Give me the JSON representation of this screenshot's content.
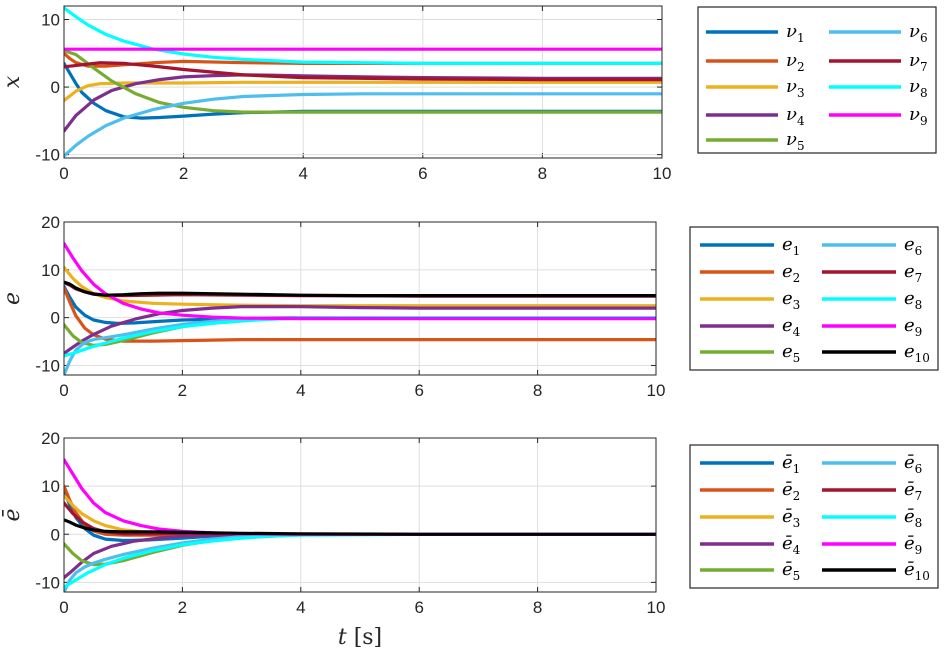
{
  "chart_data": [
    {
      "type": "line",
      "ylabel": "x",
      "xlim": [
        0,
        10
      ],
      "ylim": [
        -10.5,
        12
      ],
      "xticks": [
        "0",
        "2",
        "4",
        "6",
        "8",
        "10"
      ],
      "yticks": [
        "-10",
        "0",
        "10"
      ],
      "grid": true,
      "legend": {
        "placement": "right",
        "columns": 2
      },
      "series": [
        {
          "name": "ν1",
          "sub": "1",
          "base": "ν",
          "color": "#0072BD",
          "x": [
            0,
            0.1,
            0.2,
            0.3,
            0.5,
            0.7,
            1.0,
            1.3,
            1.6,
            2,
            2.5,
            3,
            4,
            5,
            6,
            8,
            10
          ],
          "y": [
            3.5,
            2.0,
            0.5,
            -0.8,
            -2.4,
            -3.5,
            -4.4,
            -4.6,
            -4.5,
            -4.3,
            -4.0,
            -3.8,
            -3.6,
            -3.6,
            -3.6,
            -3.6,
            -3.6
          ]
        },
        {
          "name": "ν2",
          "sub": "2",
          "base": "ν",
          "color": "#D95319",
          "x": [
            0,
            0.1,
            0.2,
            0.4,
            0.7,
            1.0,
            1.5,
            2,
            3,
            4,
            6,
            8,
            10
          ],
          "y": [
            5.0,
            4.2,
            3.6,
            3.1,
            3.1,
            3.3,
            3.6,
            3.8,
            3.6,
            3.5,
            3.5,
            3.5,
            3.5
          ]
        },
        {
          "name": "ν3",
          "sub": "3",
          "base": "ν",
          "color": "#EDB120",
          "x": [
            0,
            0.2,
            0.4,
            0.6,
            1.0,
            1.5,
            2,
            3,
            4,
            6,
            8,
            10
          ],
          "y": [
            -2.0,
            -0.6,
            0.2,
            0.5,
            0.6,
            0.6,
            0.6,
            0.7,
            0.7,
            0.7,
            0.7,
            0.7
          ]
        },
        {
          "name": "ν4",
          "sub": "4",
          "base": "ν",
          "color": "#7E2F8E",
          "x": [
            0,
            0.2,
            0.5,
            0.8,
            1.2,
            1.6,
            2,
            2.5,
            3,
            3.5,
            4,
            5,
            6,
            8,
            10
          ],
          "y": [
            -6.5,
            -4.2,
            -1.9,
            -0.5,
            0.5,
            1.1,
            1.5,
            1.7,
            1.8,
            1.75,
            1.65,
            1.5,
            1.4,
            1.3,
            1.3
          ]
        },
        {
          "name": "ν5",
          "sub": "5",
          "base": "ν",
          "color": "#77AC30",
          "x": [
            0,
            0.2,
            0.5,
            0.8,
            1.2,
            1.6,
            2,
            2.5,
            3,
            4,
            5,
            6,
            8,
            10
          ],
          "y": [
            5.4,
            4.8,
            2.8,
            0.9,
            -1.0,
            -2.3,
            -3.0,
            -3.5,
            -3.7,
            -3.7,
            -3.7,
            -3.7,
            -3.7,
            -3.7
          ]
        },
        {
          "name": "ν6",
          "sub": "6",
          "base": "ν",
          "color": "#4DBEEE",
          "x": [
            0,
            0.2,
            0.4,
            0.7,
            1.0,
            1.5,
            2,
            2.5,
            3,
            4,
            5,
            6,
            8,
            10
          ],
          "y": [
            -10.2,
            -8.6,
            -7.3,
            -5.7,
            -4.6,
            -3.3,
            -2.4,
            -1.8,
            -1.4,
            -1.1,
            -1.0,
            -1.0,
            -1.0,
            -1.0
          ]
        },
        {
          "name": "ν7",
          "sub": "7",
          "base": "ν",
          "color": "#A2142F",
          "x": [
            0,
            0.3,
            0.6,
            1.0,
            1.5,
            2,
            3,
            4,
            6,
            8,
            10
          ],
          "y": [
            3.0,
            3.3,
            3.6,
            3.5,
            3.1,
            2.6,
            1.8,
            1.4,
            1.2,
            1.1,
            1.1
          ]
        },
        {
          "name": "ν8",
          "sub": "8",
          "base": "ν",
          "color": "#00FFFF",
          "x": [
            0,
            0.2,
            0.4,
            0.7,
            1.0,
            1.5,
            2,
            2.5,
            3,
            4,
            5,
            6,
            8,
            10
          ],
          "y": [
            11.7,
            10.4,
            9.2,
            7.8,
            6.8,
            5.6,
            4.9,
            4.4,
            4.1,
            3.7,
            3.6,
            3.5,
            3.5,
            3.5
          ]
        },
        {
          "name": "ν9",
          "sub": "9",
          "base": "ν",
          "color": "#FF00FF",
          "x": [
            0,
            10
          ],
          "y": [
            5.6,
            5.6
          ]
        }
      ]
    },
    {
      "type": "line",
      "ylabel": "e",
      "xlim": [
        0,
        10
      ],
      "ylim": [
        -12,
        20
      ],
      "xticks": [
        "0",
        "2",
        "4",
        "6",
        "8",
        "10"
      ],
      "yticks": [
        "-10",
        "0",
        "10",
        "20"
      ],
      "grid": true,
      "legend": {
        "placement": "right",
        "columns": 2
      },
      "series": [
        {
          "name": "e1",
          "sub": "1",
          "base": "e",
          "color": "#0072BD",
          "x": [
            0,
            0.1,
            0.2,
            0.35,
            0.5,
            0.7,
            0.9,
            1.2,
            1.6,
            2,
            3,
            4,
            6,
            8,
            10
          ],
          "y": [
            6.5,
            4.2,
            2.2,
            0.5,
            -0.5,
            -1.0,
            -1.2,
            -1.1,
            -0.8,
            -0.5,
            -0.2,
            0,
            0,
            0,
            0
          ]
        },
        {
          "name": "e2",
          "sub": "2",
          "base": "e",
          "color": "#D95319",
          "x": [
            0,
            0.1,
            0.2,
            0.35,
            0.5,
            0.7,
            1.0,
            1.5,
            2,
            3,
            4,
            6,
            8,
            10
          ],
          "y": [
            6.2,
            3.2,
            0.4,
            -2.2,
            -3.6,
            -4.5,
            -4.9,
            -4.9,
            -4.8,
            -4.6,
            -4.6,
            -4.6,
            -4.6,
            -4.6
          ]
        },
        {
          "name": "e3",
          "sub": "3",
          "base": "e",
          "color": "#EDB120",
          "x": [
            0,
            0.15,
            0.3,
            0.5,
            0.7,
            1.0,
            1.5,
            2,
            3,
            4,
            6,
            8,
            10
          ],
          "y": [
            10.5,
            8.2,
            6.5,
            5.0,
            4.2,
            3.5,
            3.0,
            2.8,
            2.6,
            2.5,
            2.5,
            2.5,
            2.5
          ]
        },
        {
          "name": "e4",
          "sub": "4",
          "base": "e",
          "color": "#7E2F8E",
          "x": [
            0,
            0.1,
            0.3,
            0.5,
            0.8,
            1.2,
            1.6,
            2,
            2.5,
            3,
            4,
            5,
            6,
            8,
            10
          ],
          "y": [
            -7.5,
            -6.6,
            -4.9,
            -3.5,
            -1.8,
            -0.3,
            0.8,
            1.5,
            2.0,
            2.3,
            2.3,
            2.1,
            2.0,
            2.0,
            2.0
          ]
        },
        {
          "name": "e5",
          "sub": "5",
          "base": "e",
          "color": "#77AC30",
          "x": [
            0,
            0.15,
            0.3,
            0.5,
            0.7,
            1.0,
            1.5,
            2,
            2.5,
            3,
            4,
            6,
            8,
            10
          ],
          "y": [
            -1.5,
            -3.8,
            -5.2,
            -5.8,
            -5.6,
            -4.8,
            -3.2,
            -1.9,
            -1.0,
            -0.5,
            -0.1,
            0,
            0,
            0
          ]
        },
        {
          "name": "e6",
          "sub": "6",
          "base": "e",
          "color": "#4DBEEE",
          "x": [
            0,
            0.1,
            0.2,
            0.35,
            0.5,
            0.7,
            1.0,
            1.5,
            2,
            2.5,
            3,
            4,
            6,
            8,
            10
          ],
          "y": [
            -12,
            -9.0,
            -6.8,
            -5.2,
            -4.6,
            -4.2,
            -3.6,
            -2.4,
            -1.4,
            -0.8,
            -0.4,
            0,
            0,
            0,
            0
          ]
        },
        {
          "name": "e7",
          "sub": "7",
          "base": "e",
          "color": "#A2142F",
          "x": [
            0,
            0.1,
            0.2,
            0.35,
            0.5,
            0.7,
            1.0,
            1.5,
            2,
            3,
            4,
            6,
            8,
            10
          ],
          "y": [
            7.3,
            6.8,
            6.0,
            5.4,
            5.0,
            4.7,
            4.6,
            4.7,
            4.8,
            4.7,
            4.6,
            4.5,
            4.5,
            4.5
          ]
        },
        {
          "name": "e8",
          "sub": "8",
          "base": "e",
          "color": "#00FFFF",
          "x": [
            0,
            0.2,
            0.4,
            0.7,
            1.0,
            1.5,
            2,
            2.5,
            3,
            3.5,
            4,
            6,
            8,
            10
          ],
          "y": [
            -8.0,
            -7.3,
            -6.4,
            -5.3,
            -4.3,
            -2.9,
            -1.9,
            -1.2,
            -0.7,
            -0.3,
            -0.1,
            0,
            0,
            0
          ]
        },
        {
          "name": "e9",
          "sub": "9",
          "base": "e",
          "color": "#FF00FF",
          "x": [
            0,
            0.15,
            0.3,
            0.5,
            0.7,
            1.0,
            1.3,
            1.6,
            2,
            2.5,
            3,
            4,
            6,
            8,
            10
          ],
          "y": [
            15.5,
            12.5,
            9.8,
            7.0,
            5.0,
            3.0,
            1.8,
            1.0,
            0.5,
            0.1,
            -0.1,
            -0.2,
            -0.2,
            -0.2,
            -0.2
          ]
        },
        {
          "name": "e10",
          "sub": "10",
          "base": "e",
          "color": "#000000",
          "x": [
            0,
            0.1,
            0.2,
            0.35,
            0.5,
            0.7,
            1.0,
            1.3,
            1.6,
            2,
            2.5,
            3,
            4,
            5,
            6,
            8,
            10
          ],
          "y": [
            7.4,
            7.0,
            6.2,
            5.4,
            4.9,
            4.7,
            4.8,
            5.0,
            5.1,
            5.1,
            5.0,
            4.9,
            4.7,
            4.6,
            4.6,
            4.6,
            4.6
          ]
        }
      ]
    },
    {
      "type": "line",
      "ylabel": "ē",
      "xlabel": "t [s]",
      "xlim": [
        0,
        10
      ],
      "ylim": [
        -12,
        20
      ],
      "xticks": [
        "0",
        "2",
        "4",
        "6",
        "8",
        "10"
      ],
      "yticks": [
        "-10",
        "0",
        "10",
        "20"
      ],
      "grid": true,
      "legend": {
        "placement": "right",
        "columns": 2
      },
      "series": [
        {
          "name": "ē1",
          "sub": "1",
          "base": "ē",
          "color": "#0072BD",
          "x": [
            0,
            0.1,
            0.2,
            0.35,
            0.5,
            0.7,
            1.0,
            1.4,
            2,
            2.5,
            3,
            4,
            6,
            8,
            10
          ],
          "y": [
            9.0,
            6.0,
            3.5,
            1.2,
            -0.2,
            -1.0,
            -1.3,
            -1.2,
            -0.8,
            -0.4,
            -0.2,
            0,
            0,
            0,
            0
          ]
        },
        {
          "name": "ē2",
          "sub": "2",
          "base": "ē",
          "color": "#D95319",
          "x": [
            0,
            0.1,
            0.2,
            0.35,
            0.5,
            0.7,
            1.0,
            1.5,
            2,
            2.5,
            3,
            4,
            6,
            8,
            10
          ],
          "y": [
            10.0,
            7.0,
            4.5,
            2.0,
            0.7,
            0,
            -0.2,
            -0.2,
            -0.1,
            0,
            0,
            0,
            0,
            0,
            0
          ]
        },
        {
          "name": "ē3",
          "sub": "3",
          "base": "ē",
          "color": "#EDB120",
          "x": [
            0,
            0.15,
            0.3,
            0.5,
            0.7,
            1.0,
            1.5,
            2,
            2.5,
            3,
            4,
            6,
            8,
            10
          ],
          "y": [
            8.0,
            6.0,
            4.3,
            2.8,
            1.8,
            0.9,
            0.3,
            0.1,
            0,
            0,
            0,
            0,
            0,
            0
          ]
        },
        {
          "name": "ē4",
          "sub": "4",
          "base": "ē",
          "color": "#7E2F8E",
          "x": [
            0,
            0.1,
            0.3,
            0.5,
            0.8,
            1.2,
            1.6,
            2,
            2.5,
            3,
            4,
            6,
            8,
            10
          ],
          "y": [
            -9.0,
            -8.0,
            -5.8,
            -4.0,
            -2.5,
            -1.4,
            -0.8,
            -0.4,
            -0.2,
            -0.1,
            0,
            0,
            0,
            0
          ]
        },
        {
          "name": "ē5",
          "sub": "5",
          "base": "ē",
          "color": "#77AC30",
          "x": [
            0,
            0.15,
            0.3,
            0.5,
            0.7,
            1.0,
            1.5,
            2,
            2.5,
            3,
            4,
            6,
            8,
            10
          ],
          "y": [
            -2.0,
            -4.0,
            -5.5,
            -6.3,
            -6.2,
            -5.5,
            -3.8,
            -2.3,
            -1.3,
            -0.7,
            -0.1,
            0,
            0,
            0
          ]
        },
        {
          "name": "ē6",
          "sub": "6",
          "base": "ē",
          "color": "#4DBEEE",
          "x": [
            0,
            0.1,
            0.2,
            0.35,
            0.5,
            0.7,
            1.0,
            1.5,
            2,
            2.5,
            3,
            4,
            6,
            8,
            10
          ],
          "y": [
            -12,
            -9.5,
            -8.0,
            -6.8,
            -6.0,
            -5.2,
            -4.2,
            -2.9,
            -1.8,
            -1.0,
            -0.5,
            0,
            0,
            0,
            0
          ]
        },
        {
          "name": "ē7",
          "sub": "7",
          "base": "ē",
          "color": "#A2142F",
          "x": [
            0,
            0.15,
            0.3,
            0.5,
            0.7,
            1.0,
            1.5,
            2,
            3,
            4,
            6,
            8,
            10
          ],
          "y": [
            6.5,
            4.3,
            2.6,
            1.2,
            0.5,
            0.1,
            0.1,
            0.2,
            0.1,
            0,
            0,
            0,
            0
          ]
        },
        {
          "name": "ē8",
          "sub": "8",
          "base": "ē",
          "color": "#00FFFF",
          "x": [
            0,
            0.2,
            0.4,
            0.7,
            1.0,
            1.5,
            2,
            2.5,
            3,
            3.5,
            4,
            6,
            8,
            10
          ],
          "y": [
            -11.0,
            -9.5,
            -8.0,
            -6.3,
            -5.0,
            -3.4,
            -2.2,
            -1.4,
            -0.8,
            -0.4,
            -0.2,
            0,
            0,
            0
          ]
        },
        {
          "name": "ē9",
          "sub": "9",
          "base": "ē",
          "color": "#FF00FF",
          "x": [
            0,
            0.15,
            0.3,
            0.5,
            0.7,
            1.0,
            1.3,
            1.6,
            2,
            2.5,
            3,
            4,
            6,
            8,
            10
          ],
          "y": [
            15.5,
            12.5,
            9.5,
            6.5,
            4.5,
            2.8,
            1.8,
            1.1,
            0.6,
            0.3,
            0.1,
            0,
            0,
            0,
            0
          ]
        },
        {
          "name": "ē10",
          "sub": "10",
          "base": "ē",
          "color": "#000000",
          "x": [
            0,
            0.1,
            0.2,
            0.35,
            0.5,
            0.7,
            1.0,
            1.5,
            2,
            2.5,
            3,
            4,
            6,
            8,
            10
          ],
          "y": [
            3.0,
            2.5,
            1.9,
            1.3,
            0.9,
            0.6,
            0.5,
            0.5,
            0.4,
            0.3,
            0.2,
            0.1,
            0,
            0,
            0
          ]
        }
      ]
    }
  ]
}
